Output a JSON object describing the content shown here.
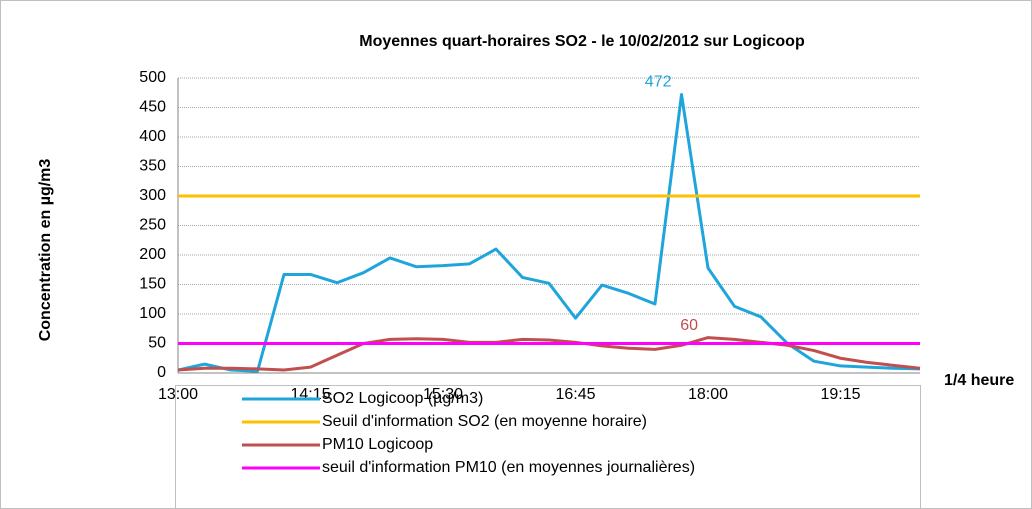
{
  "chart_data": {
    "type": "line",
    "title": "Moyennes quart-horaires SO2  -  le 10/02/2012 sur Logicoop",
    "y_label": "Concentration en µg/m3",
    "x_label": "1/4 heure",
    "categories": [
      "13:00",
      null,
      null,
      null,
      null,
      "14:15",
      null,
      null,
      null,
      null,
      "15:30",
      null,
      null,
      null,
      null,
      "16:45",
      null,
      null,
      null,
      null,
      "18:00",
      null,
      null,
      null,
      null,
      "19:15",
      null,
      null,
      null
    ],
    "ylim": [
      0,
      500
    ],
    "yticks": [
      0,
      50,
      100,
      150,
      200,
      250,
      300,
      350,
      400,
      450,
      500
    ],
    "grid": true,
    "series": [
      {
        "name": "SO2 Logicoop (µg/m3)",
        "color": "#1fa5dc",
        "labels_at": [
          19
        ],
        "values": [
          5,
          15,
          5,
          3,
          167,
          167,
          153,
          170,
          195,
          180,
          182,
          185,
          210,
          162,
          152,
          93,
          149,
          135,
          117,
          472,
          178,
          113,
          95,
          50,
          20,
          12,
          10,
          8,
          7
        ]
      },
      {
        "name": "Seuil d'information SO2 (en moyenne horaire)",
        "color": "#ffc000",
        "labels_at": [],
        "values": [
          300,
          300,
          300,
          300,
          300,
          300,
          300,
          300,
          300,
          300,
          300,
          300,
          300,
          300,
          300,
          300,
          300,
          300,
          300,
          300,
          300,
          300,
          300,
          300,
          300,
          300,
          300,
          300,
          300
        ]
      },
      {
        "name": "PM10 Logicoop",
        "color": "#c0504d",
        "labels_at": [
          20
        ],
        "values": [
          5,
          8,
          8,
          7,
          5,
          10,
          30,
          50,
          57,
          58,
          57,
          52,
          52,
          57,
          56,
          52,
          46,
          42,
          40,
          47,
          60,
          57,
          52,
          47,
          38,
          25,
          18,
          13,
          8
        ]
      },
      {
        "name": "seuil d'information PM10 (en moyennes journalières)",
        "color": "#ff00ff",
        "labels_at": [],
        "values": [
          50,
          50,
          50,
          50,
          50,
          50,
          50,
          50,
          50,
          50,
          50,
          50,
          50,
          50,
          50,
          50,
          50,
          50,
          50,
          50,
          50,
          50,
          50,
          50,
          50,
          50,
          50,
          50,
          50
        ]
      }
    ]
  }
}
